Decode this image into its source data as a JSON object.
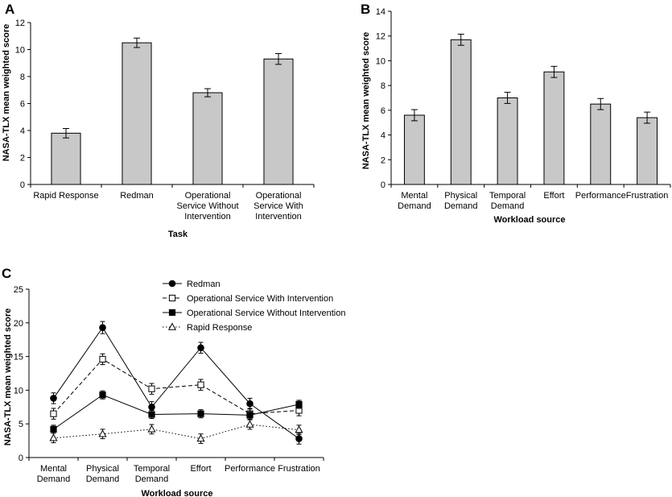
{
  "chart_data": [
    {
      "panel": "A",
      "type": "bar",
      "xlabel": "Task",
      "ylabel": "NASA-TLX mean weighted score",
      "ylim": [
        0,
        12
      ],
      "yticks": [
        0,
        2,
        4,
        6,
        8,
        10,
        12
      ],
      "categories": [
        [
          "Rapid Response"
        ],
        [
          "Redman"
        ],
        [
          "Operational",
          "Service Without",
          "Intervention"
        ],
        [
          "Operational",
          "Service With",
          "Intervention"
        ]
      ],
      "values": [
        3.8,
        10.5,
        6.8,
        9.3
      ],
      "errors": [
        0.35,
        0.35,
        0.3,
        0.4
      ]
    },
    {
      "panel": "B",
      "type": "bar",
      "xlabel": "Workload source",
      "ylabel": "NASA-TLX mean weighted score",
      "ylim": [
        0,
        14
      ],
      "yticks": [
        0,
        2,
        4,
        6,
        8,
        10,
        12,
        14
      ],
      "categories": [
        [
          "Mental",
          "Demand"
        ],
        [
          "Physical",
          "Demand"
        ],
        [
          "Temporal",
          "Demand"
        ],
        [
          "Effort"
        ],
        [
          "Performance"
        ],
        [
          "Frustration"
        ]
      ],
      "values": [
        5.6,
        11.7,
        7.0,
        9.1,
        6.5,
        5.4
      ],
      "errors": [
        0.45,
        0.45,
        0.45,
        0.45,
        0.45,
        0.45
      ]
    },
    {
      "panel": "C",
      "type": "line",
      "xlabel": "Workload source",
      "ylabel": "NASA-TLX mean weighted score",
      "ylim": [
        0,
        25
      ],
      "yticks": [
        0,
        5,
        10,
        15,
        20,
        25
      ],
      "categories": [
        [
          "Mental",
          "Demand"
        ],
        [
          "Physical",
          "Demand"
        ],
        [
          "Temporal",
          "Demand"
        ],
        [
          "Effort"
        ],
        [
          "Performance"
        ],
        [
          "Frustration"
        ]
      ],
      "series": [
        {
          "name": "Redman",
          "marker": "filled-circle",
          "dash": "solid",
          "values": [
            8.8,
            19.3,
            7.5,
            16.3,
            8.0,
            2.8
          ],
          "errors": [
            0.8,
            0.9,
            0.8,
            0.8,
            0.8,
            0.8
          ]
        },
        {
          "name": "Operational Service With Intervention",
          "marker": "open-square",
          "dash": "dashed",
          "values": [
            6.5,
            14.6,
            10.2,
            10.8,
            6.5,
            7.0
          ],
          "errors": [
            0.8,
            0.8,
            0.8,
            0.8,
            0.8,
            0.8
          ]
        },
        {
          "name": "Operational Service Without Intervention",
          "marker": "filled-square",
          "dash": "solid",
          "values": [
            4.2,
            9.3,
            6.4,
            6.5,
            6.3,
            7.9
          ],
          "errors": [
            0.6,
            0.6,
            0.6,
            0.6,
            0.6,
            0.6
          ]
        },
        {
          "name": "Rapid Response",
          "marker": "open-triangle",
          "dash": "dotted",
          "values": [
            2.9,
            3.5,
            4.2,
            2.8,
            4.9,
            4.1
          ],
          "errors": [
            0.7,
            0.7,
            0.7,
            0.7,
            0.7,
            0.7
          ]
        }
      ]
    }
  ]
}
